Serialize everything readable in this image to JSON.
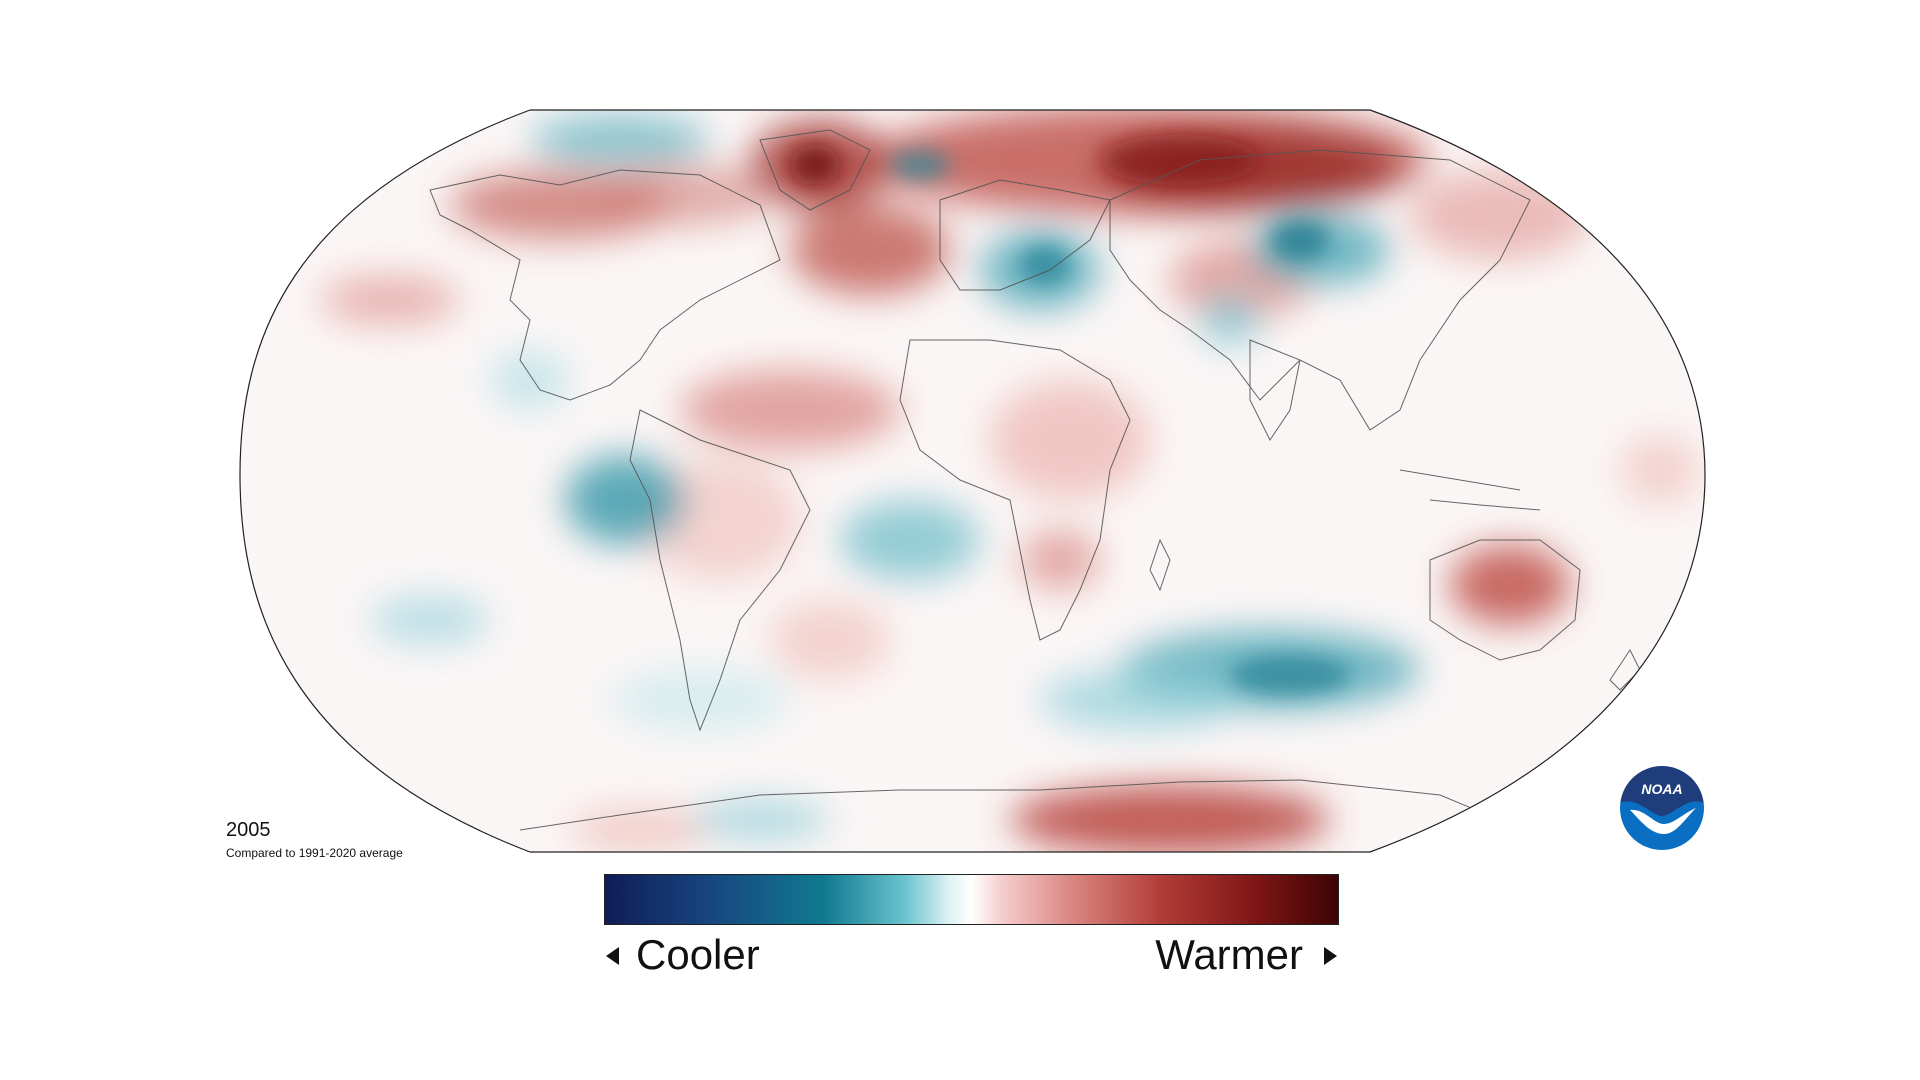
{
  "map": {
    "year": "2005",
    "baseline_note": "Compared to 1991-2020 average",
    "projection": "Robinson",
    "colors": {
      "cool_extreme": "#101c56",
      "cool": "#107a90",
      "neutral": "#ffffff",
      "warm": "#dc8a86",
      "warm_extreme": "#3e0404",
      "coastline": "#555555",
      "map_border": "#222222"
    }
  },
  "legend": {
    "cooler_label": "Cooler",
    "warmer_label": "Warmer",
    "cooler_arrow_icon": "left-triangle-icon",
    "warmer_arrow_icon": "right-triangle-icon"
  },
  "logo": {
    "text": "NOAA",
    "icon": "noaa-bird-icon",
    "colors": {
      "top": "#1f3d7a",
      "bottom": "#0a6fc2",
      "bird": "#ffffff"
    }
  }
}
